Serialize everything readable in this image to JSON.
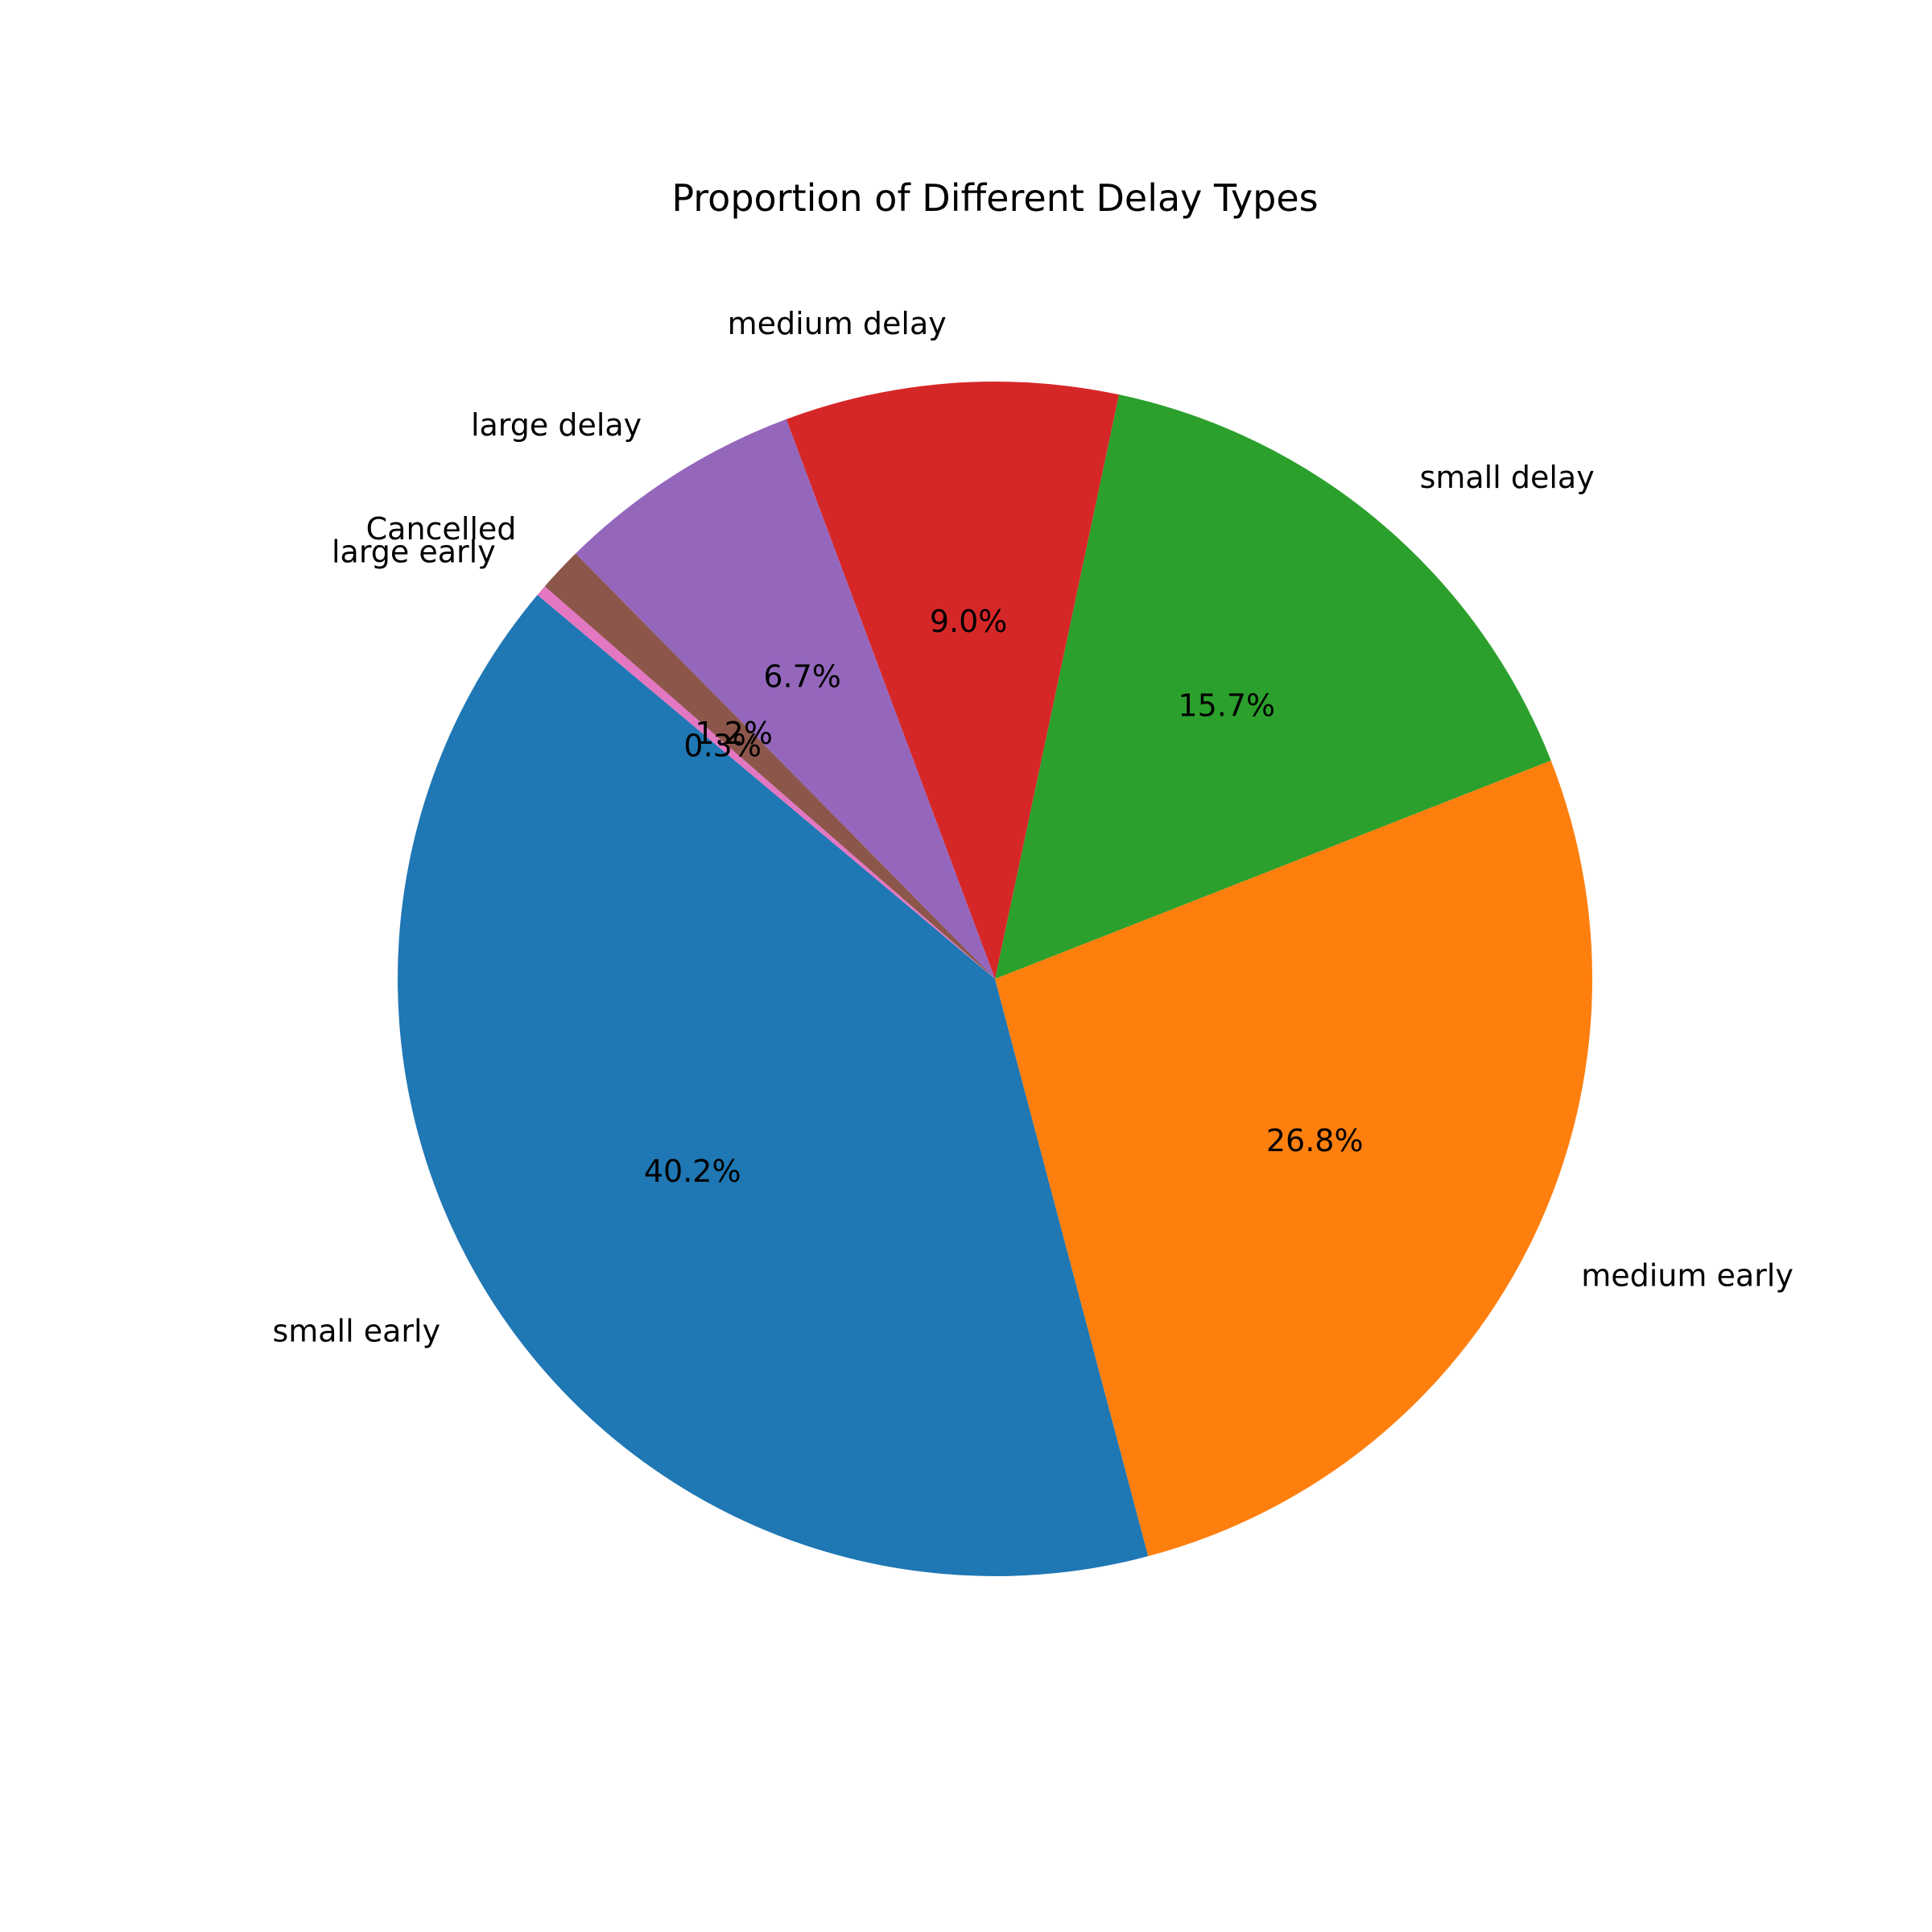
{
  "chart_data": {
    "type": "pie",
    "title": "Proportion of Different Delay Types",
    "slices": [
      {
        "label": "small early",
        "value": 40.2,
        "pct_label": "40.2%",
        "color": "#1f77b4"
      },
      {
        "label": "medium early",
        "value": 26.8,
        "pct_label": "26.8%",
        "color": "#ff7f0e"
      },
      {
        "label": "small delay",
        "value": 15.7,
        "pct_label": "15.7%",
        "color": "#2ca02c"
      },
      {
        "label": "medium delay",
        "value": 9.0,
        "pct_label": "9.0%",
        "color": "#d62728"
      },
      {
        "label": "large delay",
        "value": 6.7,
        "pct_label": "6.7%",
        "color": "#9467bd"
      },
      {
        "label": "Cancelled",
        "value": 1.2,
        "pct_label": "1.2%",
        "color": "#8c564b"
      },
      {
        "label": "large early",
        "value": 0.3,
        "pct_label": "0.3%",
        "color": "#e377c2"
      }
    ]
  }
}
